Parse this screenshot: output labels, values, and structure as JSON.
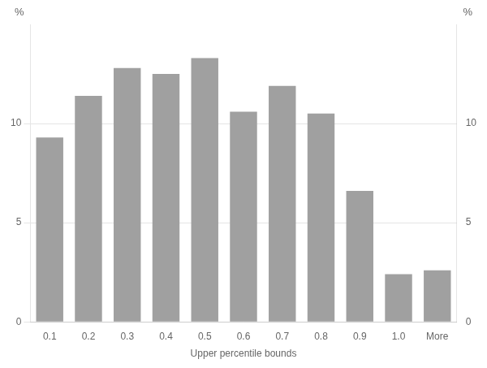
{
  "chart_data": {
    "type": "bar",
    "categories": [
      "0.1",
      "0.2",
      "0.3",
      "0.4",
      "0.5",
      "0.6",
      "0.7",
      "0.8",
      "0.9",
      "1.0",
      "More"
    ],
    "values": [
      9.3,
      11.4,
      12.8,
      12.5,
      13.3,
      10.6,
      11.9,
      10.5,
      6.6,
      2.4,
      2.6
    ],
    "color": "#a0a0a0",
    "xlabel": "Upper percentile bounds",
    "ylabel": "%",
    "y2label": "%",
    "ylim": [
      0,
      15
    ],
    "yticks": [
      0,
      5,
      10
    ],
    "y2lim": [
      0,
      15
    ],
    "y2ticks": [
      0,
      5,
      10
    ],
    "grid": true
  }
}
